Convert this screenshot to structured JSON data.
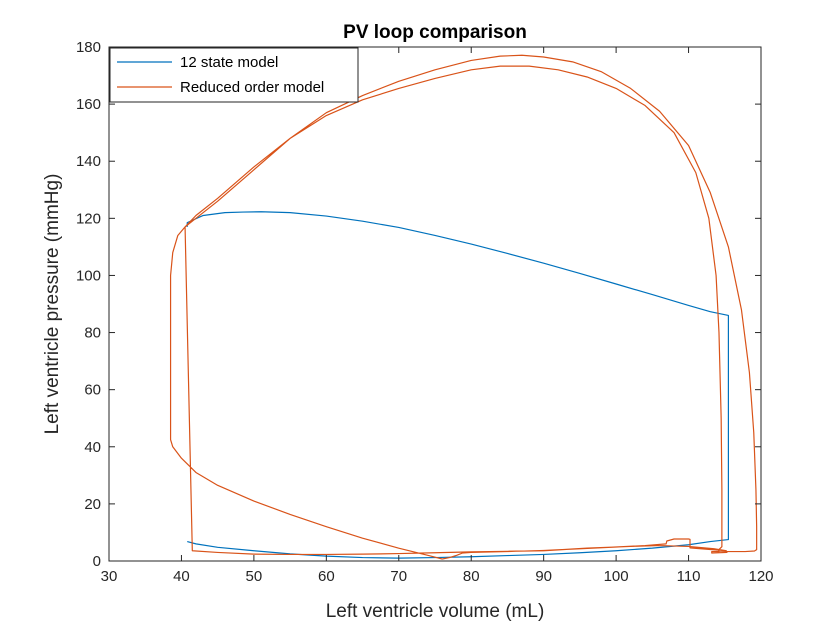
{
  "chart_data": {
    "type": "line",
    "title": "PV loop comparison",
    "xlabel": "Left ventricle volume (mL)",
    "ylabel": "Left ventricle pressure (mmHg)",
    "xlim": [
      30,
      120
    ],
    "ylim": [
      0,
      180
    ],
    "xticks": [
      30,
      40,
      50,
      60,
      70,
      80,
      90,
      100,
      110,
      120
    ],
    "yticks": [
      0,
      20,
      40,
      60,
      80,
      100,
      120,
      140,
      160,
      180
    ],
    "grid": false,
    "legend_position": "top-left",
    "series": [
      {
        "name": "12 state model",
        "color": "#0072BD",
        "x": [
          40.8,
          40.8,
          43,
          46,
          48.5,
          51,
          55,
          60,
          65,
          70,
          75,
          80,
          85,
          90,
          95,
          100,
          105,
          110,
          113,
          115.5,
          115.5,
          115.5,
          113,
          110,
          105,
          100,
          95,
          90,
          85,
          80,
          75,
          70,
          65,
          60,
          55,
          50,
          45,
          42,
          40.8
        ],
        "y": [
          117,
          118.5,
          121,
          122,
          122.2,
          122.3,
          122,
          120.8,
          119,
          116.8,
          114,
          111,
          107.7,
          104.3,
          100.7,
          97,
          93.3,
          89.5,
          87.3,
          86,
          40,
          7.5,
          6.8,
          5.7,
          4.5,
          3.6,
          2.9,
          2.3,
          1.9,
          1.5,
          1.2,
          1.0,
          1.2,
          1.7,
          2.5,
          3.6,
          4.8,
          6.0,
          6.8
        ]
      },
      {
        "name": "Reduced order model",
        "color": "#D95319",
        "x": [
          76,
          74,
          70,
          65,
          60,
          55,
          50,
          45,
          42,
          40,
          38.8,
          38.5,
          38.5,
          38.5,
          38.8,
          39.5,
          40.5,
          42,
          45,
          50,
          55,
          60,
          65,
          70,
          75,
          80,
          84,
          88,
          92,
          96,
          100,
          104,
          108,
          111,
          112.8,
          113.8,
          114.2,
          114.5,
          114.6,
          114.6,
          114.2,
          114.2,
          113.2,
          113.2,
          115.3,
          115.2,
          113.5,
          110,
          106,
          102,
          96,
          90,
          85,
          80,
          75,
          70,
          65,
          60,
          55,
          50,
          45,
          41.5,
          40.5,
          42,
          45,
          50,
          55,
          60,
          65,
          70,
          75,
          80,
          84,
          87,
          90,
          94,
          98,
          102,
          106,
          110,
          113,
          115.5,
          117.3,
          118.4,
          119,
          119.3,
          119.4,
          119.4,
          119.1,
          117.8,
          117,
          115.5,
          114.2,
          114.1,
          110.2,
          110.2,
          110.0,
          108,
          107,
          106.9,
          104,
          100,
          95,
          90,
          85,
          80,
          78.8,
          78,
          77,
          76
        ],
        "y": [
          0.7,
          2,
          4.5,
          8,
          12,
          16.3,
          21,
          26.5,
          31,
          36,
          40,
          42.5,
          70,
          100,
          108,
          114,
          117,
          120,
          126,
          137,
          148,
          156,
          161.5,
          165.5,
          169,
          172,
          173.3,
          173.3,
          172,
          169.5,
          165.5,
          159.5,
          150,
          136,
          120,
          100,
          80,
          50,
          25,
          5,
          4,
          3.3,
          3.3,
          2.8,
          3.0,
          3.6,
          4.3,
          5.1,
          5.4,
          5.1,
          4.5,
          3.6,
          3.4,
          3.2,
          2.9,
          2.6,
          2.4,
          2.3,
          2.3,
          2.4,
          3.0,
          3.6,
          117,
          121,
          127,
          138,
          148,
          157,
          163,
          168,
          172,
          175.3,
          176.8,
          177.1,
          176.5,
          174.8,
          171.3,
          165.5,
          157.5,
          145.5,
          129,
          110,
          88,
          66,
          45,
          25,
          12,
          4,
          3.5,
          3.3,
          3.3,
          3.3,
          3.5,
          3.8,
          4.6,
          7.6,
          7.7,
          7.7,
          7.0,
          6.0,
          5.4,
          4.9,
          4.3,
          3.7,
          3.3,
          3.0,
          2.8,
          2.0,
          1.2,
          0.7
        ]
      }
    ]
  }
}
